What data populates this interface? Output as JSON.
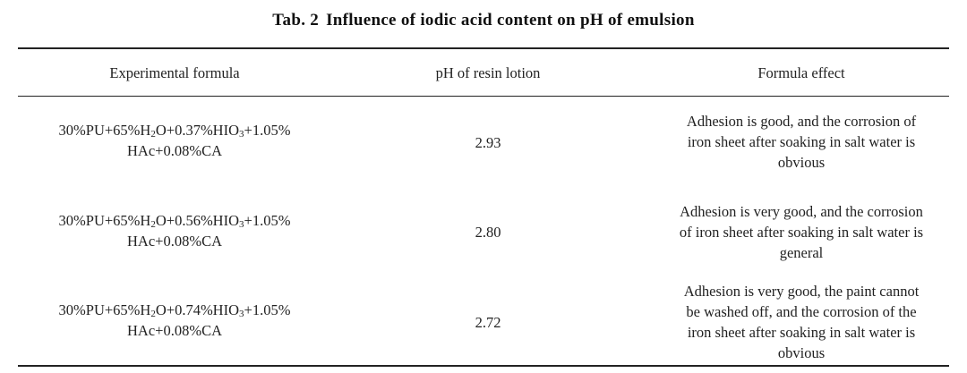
{
  "caption": {
    "number": "Tab. 2",
    "title": "Influence of iodic acid content on pH of emulsion"
  },
  "columns": [
    "Experimental formula",
    "pH of resin lotion",
    "Formula effect"
  ],
  "rows": [
    {
      "formula": {
        "p1": "30%PU+65%H",
        "s1": "2",
        "p2": "O+0.37%HIO",
        "s2": "3",
        "p3": "+1.05%",
        "line2": "HAc+0.08%CA"
      },
      "ph": "2.93",
      "effect": [
        "Adhesion is good, and the corrosion of",
        "iron sheet after soaking in salt water is",
        "obvious"
      ]
    },
    {
      "formula": {
        "p1": "30%PU+65%H",
        "s1": "2",
        "p2": "O+0.56%HIO",
        "s2": "3",
        "p3": "+1.05%",
        "line2": "HAc+0.08%CA"
      },
      "ph": "2.80",
      "effect": [
        "Adhesion is very good, and the corrosion",
        "of iron sheet after soaking in salt water is",
        "general"
      ]
    },
    {
      "formula": {
        "p1": "30%PU+65%H",
        "s1": "2",
        "p2": "O+0.74%HIO",
        "s2": "3",
        "p3": "+1.05%",
        "line2": "HAc+0.08%CA"
      },
      "ph": "2.72",
      "effect": [
        "Adhesion is very good, the paint cannot",
        "be washed off, and the corrosion of the",
        "iron sheet after soaking in salt water is",
        "obvious"
      ]
    }
  ]
}
